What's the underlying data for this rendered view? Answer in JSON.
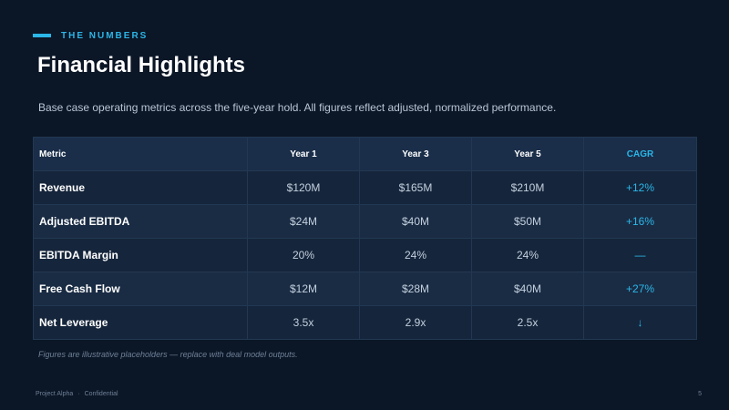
{
  "header": {
    "eyebrow": "THE NUMBERS",
    "title": "Financial Highlights",
    "subtitle": "Base case operating metrics across the five-year hold. All figures reflect adjusted, normalized performance."
  },
  "table": {
    "columns": [
      "Metric",
      "Year 1",
      "Year 3",
      "Year 5",
      "CAGR"
    ],
    "rows": [
      {
        "metric": "Revenue",
        "year1": "$120M",
        "year3": "$165M",
        "year5": "$210M",
        "cagr": "+12%"
      },
      {
        "metric": "Adjusted EBITDA",
        "year1": "$24M",
        "year3": "$40M",
        "year5": "$50M",
        "cagr": "+16%"
      },
      {
        "metric": "EBITDA Margin",
        "year1": "20%",
        "year3": "24%",
        "year5": "24%",
        "cagr": "—"
      },
      {
        "metric": "Free Cash Flow",
        "year1": "$12M",
        "year3": "$28M",
        "year5": "$40M",
        "cagr": "+27%"
      },
      {
        "metric": "Net Leverage",
        "year1": "3.5x",
        "year3": "2.9x",
        "year5": "2.5x",
        "cagr": "↓"
      }
    ]
  },
  "footnote": "Figures are illustrative placeholders — replace with deal model outputs.",
  "footer": {
    "project": "Project Alpha",
    "separator": "·",
    "confidential": "Confidential",
    "page": "5"
  },
  "colors": {
    "background": "#0b1626",
    "accent": "#2bb6e8",
    "header_row": "#1a2e4a"
  }
}
